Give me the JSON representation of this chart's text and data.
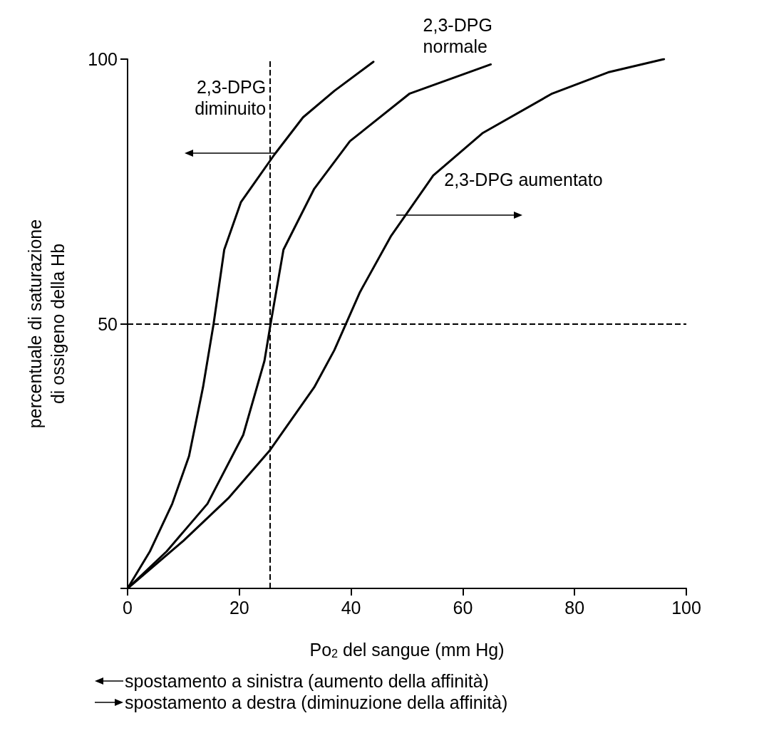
{
  "chart_data": {
    "type": "line",
    "xlabel": "Po$_{2}$ del sangue (mm Hg)",
    "ylabel": "percentuale di saturazione\ndi ossigeno della Hb",
    "xlim": [
      0,
      100
    ],
    "xticks": [
      0,
      20,
      40,
      60,
      80,
      100
    ],
    "ylim": [
      0,
      100
    ],
    "yticks": [
      {
        "value": 0,
        "label": null
      },
      50,
      100
    ],
    "grid": false,
    "marker": "none",
    "line_style": "solid",
    "series": [
      {
        "name": "2,3-DPG diminuito",
        "color": "#000000",
        "x": [
          0,
          4,
          8,
          11,
          13.5,
          15.4,
          17.3,
          20.3,
          26.3,
          31.4,
          37,
          44
        ],
        "values": [
          0,
          7,
          16,
          25,
          38,
          50,
          64,
          73,
          82,
          89,
          94,
          99.5
        ]
      },
      {
        "name": "2,3-DPG normale",
        "color": "#000000",
        "x": [
          0,
          7,
          14.3,
          20.7,
          24.5,
          25.6,
          27.9,
          33.4,
          39.8,
          50.5,
          65
        ],
        "values": [
          0,
          7,
          16,
          29,
          43,
          50,
          64,
          75.5,
          84.5,
          93.5,
          99
        ]
      },
      {
        "name": "2,3-DPG aumentato",
        "color": "#000000",
        "x": [
          0,
          10,
          18,
          25.4,
          33.4,
          37,
          41.6,
          47.1,
          54.7,
          63.5,
          76,
          86,
          96
        ],
        "values": [
          0,
          9,
          17,
          26,
          38,
          45,
          56,
          66.5,
          78,
          86,
          93.5,
          97.5,
          100
        ]
      }
    ],
    "ref_lines": [
      {
        "axis": "x",
        "value": 25.5,
        "color": "#000000",
        "line_style": "dashed"
      },
      {
        "axis": "y",
        "value": 50,
        "color": "#000000",
        "line_style": "dashed"
      }
    ],
    "annotations": [
      "spostamento a sinistra (aumento della affinità)",
      "spostamento a destra (diminuzione della affinità)"
    ]
  }
}
